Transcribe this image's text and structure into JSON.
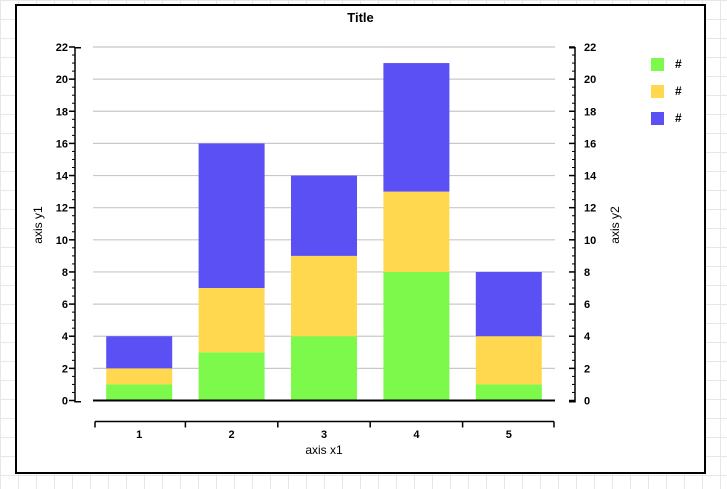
{
  "chart_data": {
    "type": "bar",
    "stacked": true,
    "title": "Title",
    "xlabel": "axis x1",
    "ylabel_left": "axis y1",
    "ylabel_right": "axis y2",
    "categories": [
      "1",
      "2",
      "3",
      "4",
      "5"
    ],
    "series": [
      {
        "name": "#",
        "color": "#7DF94B",
        "values": [
          1,
          3,
          4,
          8,
          1
        ]
      },
      {
        "name": "#",
        "color": "#FFD850",
        "values": [
          1,
          4,
          5,
          5,
          3
        ]
      },
      {
        "name": "#",
        "color": "#5B50F3",
        "values": [
          2,
          9,
          5,
          8,
          4
        ]
      }
    ],
    "stack_totals": [
      4,
      16,
      14,
      21,
      8
    ],
    "ylim": [
      0,
      22
    ],
    "yticks": [
      0,
      2,
      4,
      6,
      8,
      10,
      12,
      14,
      16,
      18,
      20,
      22
    ],
    "minor_tick_step": 0.5,
    "grid": true,
    "gridline_color": "#C8C8C8",
    "axis_color": "#000000",
    "baseline_color": "#000000",
    "legend_position": "top-right",
    "legend_labels": [
      "#",
      "#",
      "#"
    ]
  },
  "window": {
    "panel_background": "#FFFFFF",
    "panel_border_color": "#000000",
    "background_grid_color": "#E7E7E7"
  }
}
